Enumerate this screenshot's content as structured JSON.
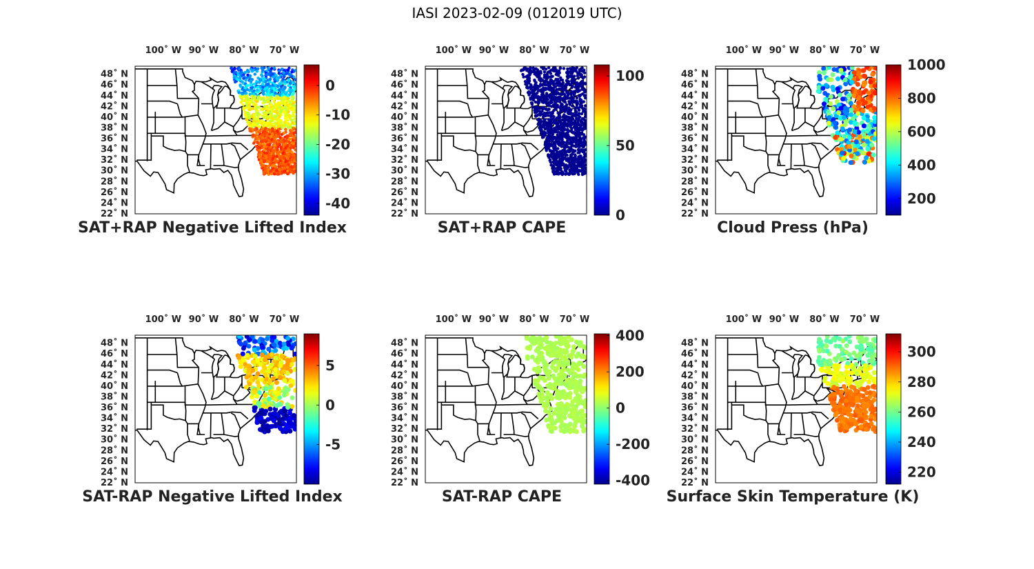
{
  "title": "IASI 2023-02-09 (012019 UTC)",
  "map": {
    "lon_ticks": [
      {
        "lon": -100,
        "label": "100˚ W"
      },
      {
        "lon": -90,
        "label": "90˚ W"
      },
      {
        "lon": -80,
        "label": "80˚ W"
      },
      {
        "lon": -70,
        "label": "70˚ W"
      }
    ],
    "lat_ticks": [
      {
        "lat": 48,
        "label": "48˚ N"
      },
      {
        "lat": 46,
        "label": "46˚ N"
      },
      {
        "lat": 44,
        "label": "44˚ N"
      },
      {
        "lat": 42,
        "label": "42˚ N"
      },
      {
        "lat": 40,
        "label": "40˚ N"
      },
      {
        "lat": 38,
        "label": "38˚ N"
      },
      {
        "lat": 36,
        "label": "36˚ N"
      },
      {
        "lat": 34,
        "label": "34˚ N"
      },
      {
        "lat": 32,
        "label": "32˚ N"
      },
      {
        "lat": 30,
        "label": "30˚ N"
      },
      {
        "lat": 28,
        "label": "28˚ N"
      },
      {
        "lat": 26,
        "label": "26˚ N"
      },
      {
        "lat": 24,
        "label": "24˚ N"
      },
      {
        "lat": 22,
        "label": "22˚ N"
      }
    ],
    "lon_range": [
      -107,
      -67
    ],
    "lat_range": [
      22,
      49.5
    ]
  },
  "panels": [
    {
      "title": "SAT+RAP Negative Lifted Index",
      "colorbar": {
        "min": -44,
        "max": 7,
        "ticks": [
          {
            "v": 0,
            "label": "0"
          },
          {
            "v": -10,
            "label": "-10"
          },
          {
            "v": -20,
            "label": "-20"
          },
          {
            "v": -30,
            "label": "-30"
          },
          {
            "v": -40,
            "label": "-40"
          }
        ]
      }
    },
    {
      "title": "SAT+RAP CAPE",
      "colorbar": {
        "min": 0,
        "max": 108,
        "ticks": [
          {
            "v": 100,
            "label": "100"
          },
          {
            "v": 50,
            "label": "50"
          },
          {
            "v": 0,
            "label": "0"
          }
        ]
      }
    },
    {
      "title": "Cloud Press (hPa)",
      "colorbar": {
        "min": 100,
        "max": 1000,
        "ticks": [
          {
            "v": 1000,
            "label": "1000"
          },
          {
            "v": 800,
            "label": "800"
          },
          {
            "v": 600,
            "label": "600"
          },
          {
            "v": 400,
            "label": "400"
          },
          {
            "v": 200,
            "label": "200"
          }
        ]
      }
    },
    {
      "title": "SAT-RAP Negative Lifted Index",
      "colorbar": {
        "min": -10,
        "max": 9,
        "ticks": [
          {
            "v": 5,
            "label": "5"
          },
          {
            "v": 0,
            "label": "0"
          },
          {
            "v": -5,
            "label": "-5"
          }
        ]
      }
    },
    {
      "title": "SAT-RAP CAPE",
      "colorbar": {
        "min": -420,
        "max": 410,
        "ticks": [
          {
            "v": 400,
            "label": "400"
          },
          {
            "v": 200,
            "label": "200"
          },
          {
            "v": 0,
            "label": "0"
          },
          {
            "v": -200,
            "label": "-200"
          },
          {
            "v": -400,
            "label": "-400"
          }
        ]
      }
    },
    {
      "title": "Surface Skin Temperature (K)",
      "colorbar": {
        "min": 212,
        "max": 312,
        "ticks": [
          {
            "v": 300,
            "label": "300"
          },
          {
            "v": 280,
            "label": "280"
          },
          {
            "v": 260,
            "label": "260"
          },
          {
            "v": 240,
            "label": "240"
          },
          {
            "v": 220,
            "label": "220"
          }
        ]
      }
    }
  ],
  "colors": {
    "jet": [
      "#00008f",
      "#0000ff",
      "#00ffff",
      "#ffff00",
      "#ff0000",
      "#800000"
    ]
  }
}
